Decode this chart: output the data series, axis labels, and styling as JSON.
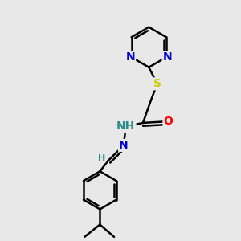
{
  "bg_color": "#e8e8e8",
  "bond_color": "#000000",
  "bond_width": 1.8,
  "atom_colors": {
    "N": "#0000cc",
    "O": "#ff0000",
    "S": "#cccc00",
    "H": "#2e8b8b",
    "C": "#000000"
  },
  "font_size_atom": 10,
  "font_size_h": 8
}
